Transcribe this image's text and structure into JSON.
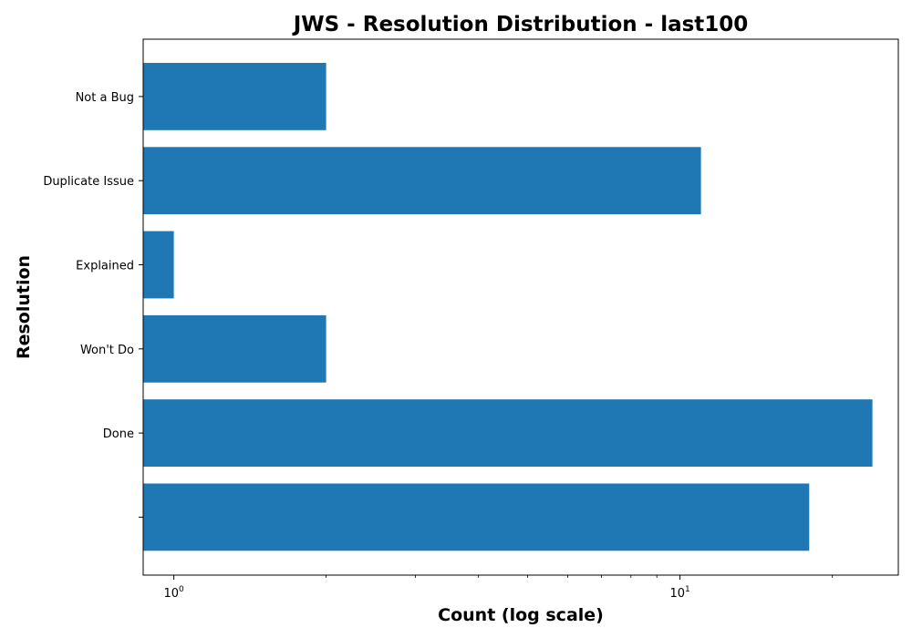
{
  "chart_data": {
    "type": "bar",
    "orientation": "horizontal",
    "title": "JWS - Resolution Distribution - last100",
    "xlabel": "Count (log scale)",
    "ylabel": "Resolution",
    "xscale": "log",
    "xlim": [
      0.87,
      27
    ],
    "categories": [
      "Not a Bug",
      "Duplicate Issue",
      "Explained",
      "Won't Do",
      "Done",
      ""
    ],
    "values": [
      2,
      11,
      1,
      2,
      24,
      18
    ],
    "x_ticks": [
      {
        "value": 1,
        "base": "10",
        "exp": "0"
      },
      {
        "value": 10,
        "base": "10",
        "exp": "1"
      }
    ],
    "x_minor_ticks": [
      2,
      3,
      4,
      5,
      6,
      7,
      8,
      9,
      20
    ],
    "bar_color": "#1f77b4",
    "grid": false,
    "legend": "none"
  }
}
